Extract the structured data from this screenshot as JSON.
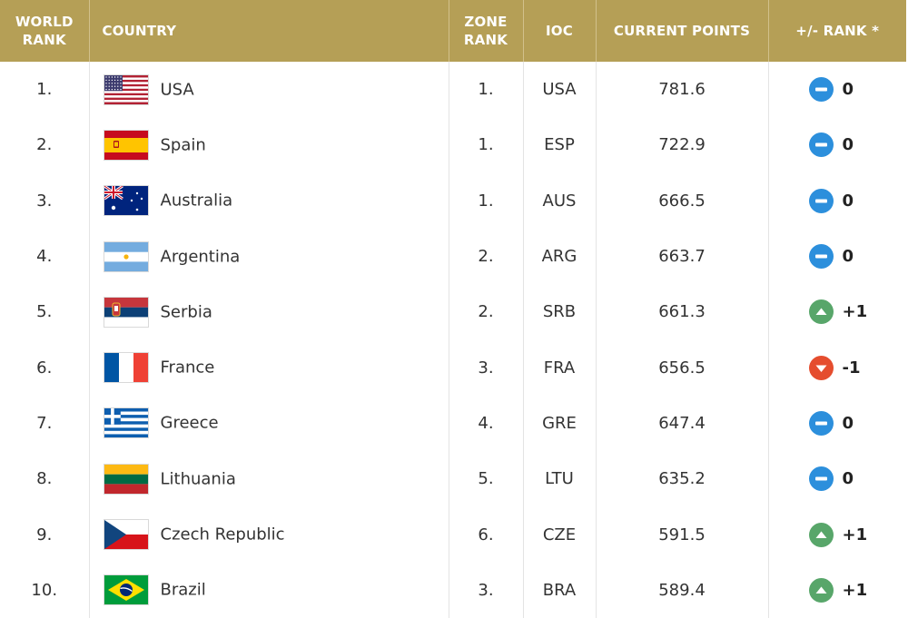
{
  "header": {
    "world_rank": "WORLD RANK",
    "country": "COUNTRY",
    "zone_rank": "ZONE RANK",
    "ioc": "IOC",
    "current_points": "CURRENT POINTS",
    "rank_change": "+/- RANK *"
  },
  "colors": {
    "header_bg": "#b59f56",
    "up": "#58a66a",
    "same": "#2c8fdc",
    "down": "#e54d2e"
  },
  "rows": [
    {
      "world_rank": "1.",
      "country": "USA",
      "flag": "usa-flag",
      "zone_rank": "1.",
      "ioc": "USA",
      "points": "781.6",
      "trend": "same",
      "delta": "0"
    },
    {
      "world_rank": "2.",
      "country": "Spain",
      "flag": "spain-flag",
      "zone_rank": "1.",
      "ioc": "ESP",
      "points": "722.9",
      "trend": "same",
      "delta": "0"
    },
    {
      "world_rank": "3.",
      "country": "Australia",
      "flag": "australia-flag",
      "zone_rank": "1.",
      "ioc": "AUS",
      "points": "666.5",
      "trend": "same",
      "delta": "0"
    },
    {
      "world_rank": "4.",
      "country": "Argentina",
      "flag": "argentina-flag",
      "zone_rank": "2.",
      "ioc": "ARG",
      "points": "663.7",
      "trend": "same",
      "delta": "0"
    },
    {
      "world_rank": "5.",
      "country": "Serbia",
      "flag": "serbia-flag",
      "zone_rank": "2.",
      "ioc": "SRB",
      "points": "661.3",
      "trend": "up",
      "delta": "+1"
    },
    {
      "world_rank": "6.",
      "country": "France",
      "flag": "france-flag",
      "zone_rank": "3.",
      "ioc": "FRA",
      "points": "656.5",
      "trend": "down",
      "delta": "-1"
    },
    {
      "world_rank": "7.",
      "country": "Greece",
      "flag": "greece-flag",
      "zone_rank": "4.",
      "ioc": "GRE",
      "points": "647.4",
      "trend": "same",
      "delta": "0"
    },
    {
      "world_rank": "8.",
      "country": "Lithuania",
      "flag": "lithuania-flag",
      "zone_rank": "5.",
      "ioc": "LTU",
      "points": "635.2",
      "trend": "same",
      "delta": "0"
    },
    {
      "world_rank": "9.",
      "country": "Czech Republic",
      "flag": "czech-flag",
      "zone_rank": "6.",
      "ioc": "CZE",
      "points": "591.5",
      "trend": "up",
      "delta": "+1"
    },
    {
      "world_rank": "10.",
      "country": "Brazil",
      "flag": "brazil-flag",
      "zone_rank": "3.",
      "ioc": "BRA",
      "points": "589.4",
      "trend": "up",
      "delta": "+1"
    }
  ]
}
